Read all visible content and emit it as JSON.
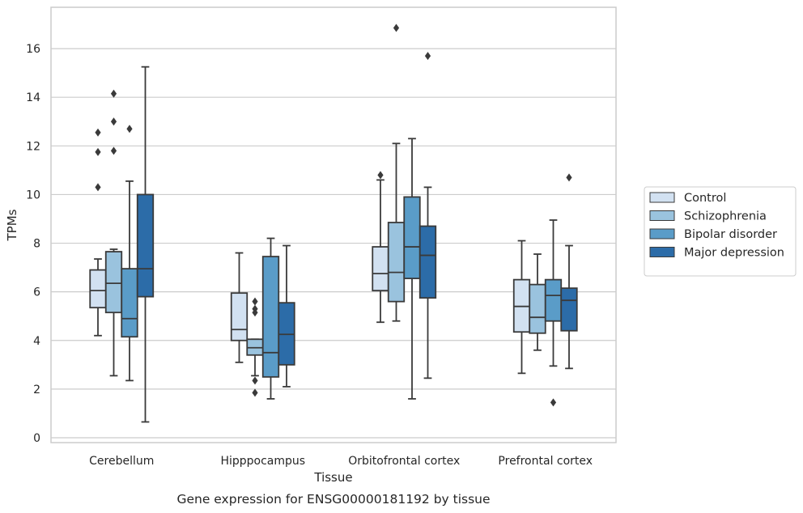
{
  "caption": "Gene expression for ENSG00000181192 by tissue",
  "chart_data": {
    "type": "box",
    "title": "",
    "xlabel": "Tissue",
    "ylabel": "TPMs",
    "ylim": [
      -0.2,
      17.7
    ],
    "yticks": [
      0,
      2,
      4,
      6,
      8,
      10,
      12,
      14,
      16
    ],
    "grid": "horizontal",
    "legend_position": "right",
    "categories": [
      "Cerebellum",
      "Hipppocampus",
      "Orbitofrontal cortex",
      "Prefrontal cortex"
    ],
    "series": [
      {
        "name": "Control",
        "color": "#d2e1f1",
        "boxes": [
          {
            "whislo": 4.2,
            "q1": 5.35,
            "med": 6.05,
            "q3": 6.9,
            "whishi": 7.35,
            "fliers": [
              10.3,
              11.75,
              12.55
            ]
          },
          {
            "whislo": 3.1,
            "q1": 4.0,
            "med": 4.45,
            "q3": 5.95,
            "whishi": 7.6,
            "fliers": []
          },
          {
            "whislo": 4.75,
            "q1": 6.05,
            "med": 6.75,
            "q3": 7.85,
            "whishi": 10.6,
            "fliers": [
              10.8
            ]
          },
          {
            "whislo": 2.65,
            "q1": 4.35,
            "med": 5.4,
            "q3": 6.5,
            "whishi": 8.1,
            "fliers": []
          }
        ]
      },
      {
        "name": "Schizophrenia",
        "color": "#9ac3de",
        "boxes": [
          {
            "whislo": 2.55,
            "q1": 5.15,
            "med": 6.35,
            "q3": 7.65,
            "whishi": 7.75,
            "fliers": [
              11.8,
              13.0,
              14.15
            ]
          },
          {
            "whislo": 2.55,
            "q1": 3.4,
            "med": 3.7,
            "q3": 4.05,
            "whishi": 4.05,
            "fliers": [
              1.85,
              2.35,
              5.15,
              5.3,
              5.6
            ]
          },
          {
            "whislo": 4.8,
            "q1": 5.6,
            "med": 6.8,
            "q3": 8.85,
            "whishi": 12.1,
            "fliers": [
              16.85
            ]
          },
          {
            "whislo": 3.6,
            "q1": 4.3,
            "med": 4.95,
            "q3": 6.3,
            "whishi": 7.55,
            "fliers": []
          }
        ]
      },
      {
        "name": "Bipolar disorder",
        "color": "#5a9cc8",
        "boxes": [
          {
            "whislo": 2.35,
            "q1": 4.15,
            "med": 4.9,
            "q3": 6.95,
            "whishi": 10.55,
            "fliers": [
              12.7
            ]
          },
          {
            "whislo": 1.6,
            "q1": 2.5,
            "med": 3.5,
            "q3": 7.45,
            "whishi": 8.2,
            "fliers": []
          },
          {
            "whislo": 1.6,
            "q1": 6.55,
            "med": 7.85,
            "q3": 9.9,
            "whishi": 12.3,
            "fliers": []
          },
          {
            "whislo": 2.95,
            "q1": 4.8,
            "med": 5.85,
            "q3": 6.5,
            "whishi": 8.95,
            "fliers": [
              1.45
            ]
          }
        ]
      },
      {
        "name": "Major depression",
        "color": "#2c6ca8",
        "boxes": [
          {
            "whislo": 0.65,
            "q1": 5.8,
            "med": 6.95,
            "q3": 10.0,
            "whishi": 15.25,
            "fliers": []
          },
          {
            "whislo": 2.1,
            "q1": 3.0,
            "med": 4.25,
            "q3": 5.55,
            "whishi": 7.9,
            "fliers": []
          },
          {
            "whislo": 2.45,
            "q1": 5.75,
            "med": 7.5,
            "q3": 8.7,
            "whishi": 10.3,
            "fliers": [
              15.7
            ]
          },
          {
            "whislo": 2.85,
            "q1": 4.4,
            "med": 5.65,
            "q3": 6.15,
            "whishi": 7.9,
            "fliers": [
              10.7
            ]
          }
        ]
      }
    ]
  }
}
